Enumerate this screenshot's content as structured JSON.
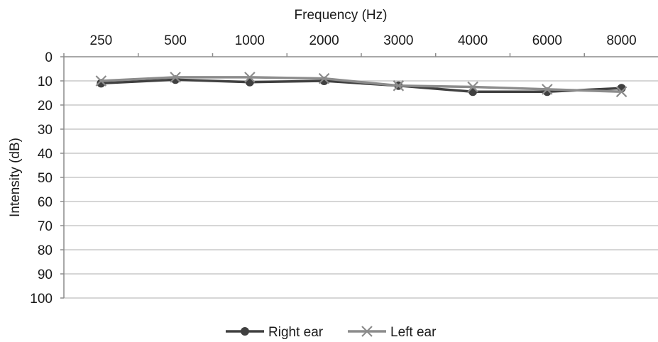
{
  "chart_data": {
    "type": "line",
    "xlabel": "Frequency (Hz)",
    "ylabel": "Intensity  (dB)",
    "categories": [
      "250",
      "500",
      "1000",
      "2000",
      "3000",
      "4000",
      "6000",
      "8000"
    ],
    "ylim": [
      0,
      100
    ],
    "y_ticks": [
      "0",
      "10",
      "20",
      "30",
      "40",
      "50",
      "60",
      "70",
      "80",
      "90",
      "100"
    ],
    "y_axis_inverted": true,
    "x_axis_position": "top",
    "grid": true,
    "legend_position": "bottom",
    "series": [
      {
        "name": "Right ear",
        "color": "#404040",
        "marker": "circle",
        "values": [
          11,
          9.5,
          10.5,
          10,
          12,
          14.5,
          14.5,
          13
        ]
      },
      {
        "name": "Left ear",
        "color": "#8c8c8c",
        "marker": "x",
        "values": [
          10,
          8.5,
          8.5,
          9,
          12,
          12.5,
          13.5,
          14.5
        ]
      }
    ]
  }
}
